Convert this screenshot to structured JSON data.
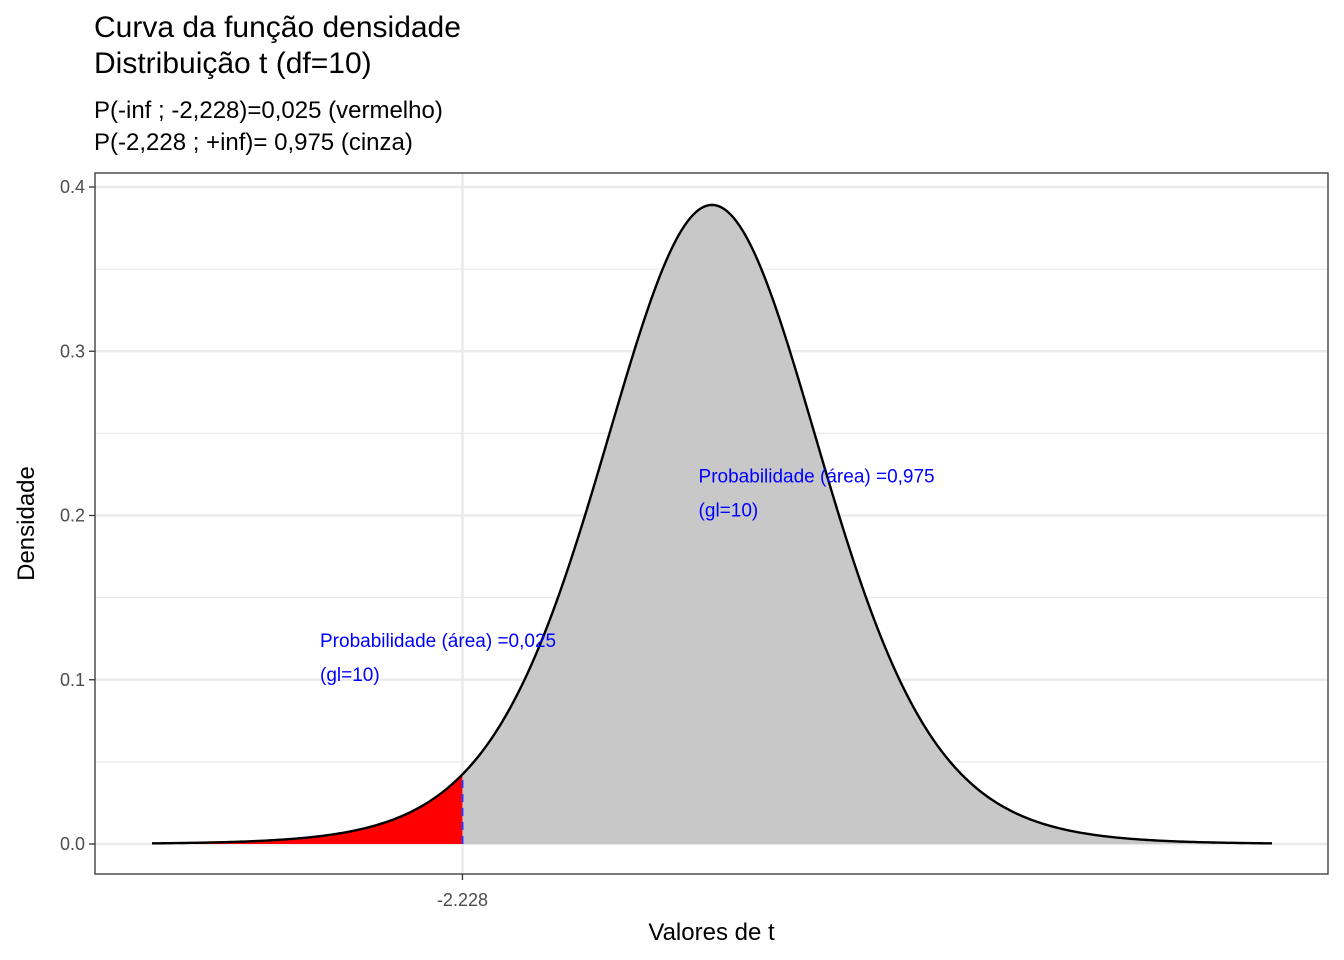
{
  "chart_data": {
    "type": "area",
    "title_line1": "Curva da função densidade",
    "title_line2": "Distribuição t (df=10)",
    "subtitle_line1": "P(-inf ; -2,228)=0,025 (vermelho)",
    "subtitle_line2": "P(-2,228 ; +inf)= 0,975 (cinza)",
    "xlabel": "Valores de t",
    "ylabel": "Densidade",
    "df": 10,
    "xlim": [
      -5,
      5
    ],
    "ylim": [
      0,
      0.4
    ],
    "yticks": [
      "0.0",
      "0.1",
      "0.2",
      "0.3",
      "0.4"
    ],
    "xticks": [
      "-2.228"
    ],
    "critical_value": -2.228,
    "grid": true,
    "regions": [
      {
        "name": "vermelho",
        "from": -5,
        "to": -2.228,
        "probability": 0.025,
        "color": "#ff0000"
      },
      {
        "name": "cinza",
        "from": -2.228,
        "to": 5,
        "probability": 0.975,
        "color": "#c8c8c8"
      }
    ],
    "curve_color": "#000000",
    "cutoff_line_color": "#3333ff",
    "annotations": [
      {
        "line1": "Probabilidade (área) =0,025",
        "line2": "(gl=10)",
        "x": -3.5,
        "y": 0.12,
        "color": "#0000ff"
      },
      {
        "line1": "Probabilidade (área) =0,975",
        "line2": "(gl=10)",
        "x": -0.12,
        "y": 0.22,
        "color": "#0000ff"
      }
    ]
  }
}
